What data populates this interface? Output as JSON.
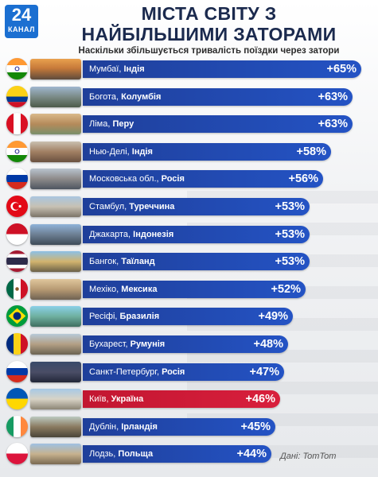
{
  "header": {
    "logo_number": "24",
    "logo_word": "КАНАЛ",
    "title_line1": "МІСТА СВІТУ З",
    "title_line2": "НАЙБІЛЬШИМИ ЗАТОРАМИ",
    "subtitle": "Наскільки збільшується тривалість поїздки через затори",
    "credit": "Дані: TomTom"
  },
  "colors": {
    "bar": "#1f3f9a",
    "highlight": "#c21631",
    "title": "#1b2a4e"
  },
  "chart_data": {
    "type": "bar",
    "orientation": "horizontal",
    "title": "МІСТА СВІТУ З НАЙБІЛЬШИМИ ЗАТОРАМИ",
    "subtitle": "Наскільки збільшується тривалість поїздки через затори",
    "unit": "%",
    "value_prefix": "+",
    "xlim": [
      0,
      65
    ],
    "highlight_category": "Київ",
    "categories": [
      {
        "city": "Мумбаї",
        "country": "Індія",
        "value": 65,
        "flag": "india"
      },
      {
        "city": "Богота",
        "country": "Колумбія",
        "value": 63,
        "flag": "colombia"
      },
      {
        "city": "Ліма",
        "country": "Перу",
        "value": 63,
        "flag": "peru"
      },
      {
        "city": "Нью-Делі",
        "country": "Індія",
        "value": 58,
        "flag": "india"
      },
      {
        "city": "Московська обл.",
        "country": "Росія",
        "value": 56,
        "flag": "russia"
      },
      {
        "city": "Стамбул",
        "country": "Туреччина",
        "value": 53,
        "flag": "turkey"
      },
      {
        "city": "Джакарта",
        "country": "Індонезія",
        "value": 53,
        "flag": "indonesia"
      },
      {
        "city": "Бангок",
        "country": "Таїланд",
        "value": 53,
        "flag": "thailand"
      },
      {
        "city": "Мехіко",
        "country": "Мексика",
        "value": 52,
        "flag": "mexico"
      },
      {
        "city": "Ресіфі",
        "country": "Бразилія",
        "value": 49,
        "flag": "brazil"
      },
      {
        "city": "Бухарест",
        "country": "Румунія",
        "value": 48,
        "flag": "romania"
      },
      {
        "city": "Санкт-Петербург",
        "country": "Росія",
        "value": 47,
        "flag": "russia"
      },
      {
        "city": "Київ",
        "country": "Україна",
        "value": 46,
        "flag": "ukraine"
      },
      {
        "city": "Дублін",
        "country": "Ірландія",
        "value": 45,
        "flag": "ireland"
      },
      {
        "city": "Лодзь",
        "country": "Польща",
        "value": 44,
        "flag": "poland"
      }
    ]
  }
}
